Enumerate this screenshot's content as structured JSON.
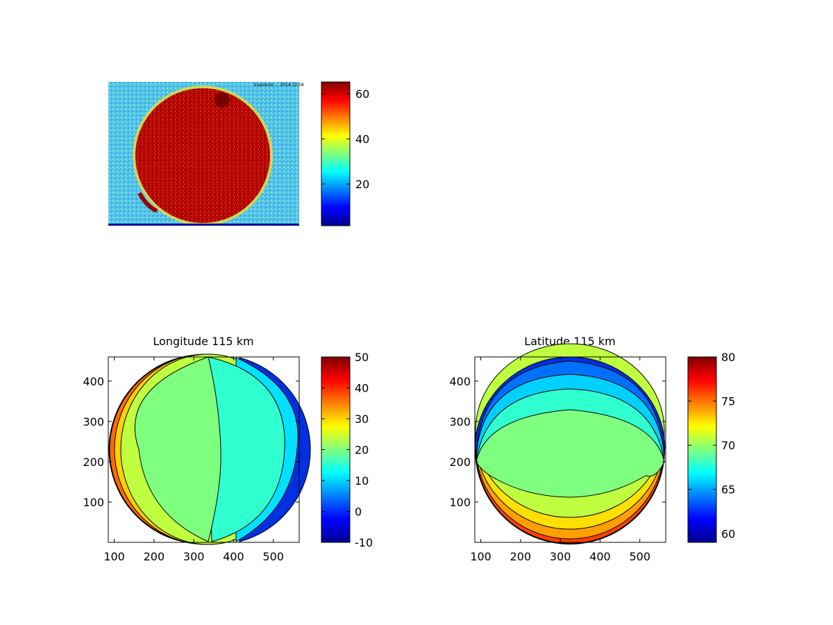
{
  "figure": {
    "image_panel": {
      "corner_note": "Exposure ... 2014.12.08",
      "colorbar_ticks": [
        "20",
        "40",
        "60"
      ]
    }
  },
  "chart_data": [
    {
      "type": "heatmap",
      "title": "",
      "description_shape": "noisy disc image",
      "colorbar": {
        "ticks": [
          20,
          40,
          60
        ],
        "range": [
          1,
          64
        ],
        "colormap": "jet"
      },
      "xlabel": "",
      "ylabel": ""
    },
    {
      "type": "heatmap",
      "title": "Longitude 115 km",
      "xlabel": "",
      "ylabel": "",
      "xlim": [
        85,
        565
      ],
      "ylim": [
        0,
        460
      ],
      "xticks": [
        "100",
        "200",
        "300",
        "400",
        "500"
      ],
      "yticks": [
        "100",
        "200",
        "300",
        "400"
      ],
      "colorbar": {
        "ticks": [
          "50",
          "40",
          "30",
          "20",
          "10",
          "0",
          "-10"
        ],
        "range": [
          -10,
          50
        ],
        "colormap": "jet"
      },
      "contour_levels": [
        {
          "value": 10
        },
        {
          "value": 15
        },
        {
          "value": 20
        },
        {
          "value": 25
        },
        {
          "value": 30
        }
      ]
    },
    {
      "type": "heatmap",
      "title": "Latitude 115 km",
      "xlabel": "",
      "ylabel": "",
      "xlim": [
        85,
        565
      ],
      "ylim": [
        0,
        460
      ],
      "xticks": [
        "100",
        "200",
        "300",
        "400",
        "500"
      ],
      "yticks": [
        "100",
        "200",
        "300",
        "400"
      ],
      "colorbar": {
        "ticks": [
          "80",
          "75",
          "70",
          "65",
          "60"
        ],
        "range": [
          59,
          80
        ],
        "colormap": "jet"
      },
      "contour_levels": [
        {
          "value": 64
        },
        {
          "value": 66
        },
        {
          "value": 68
        },
        {
          "value": 70
        },
        {
          "value": 72
        }
      ]
    }
  ]
}
